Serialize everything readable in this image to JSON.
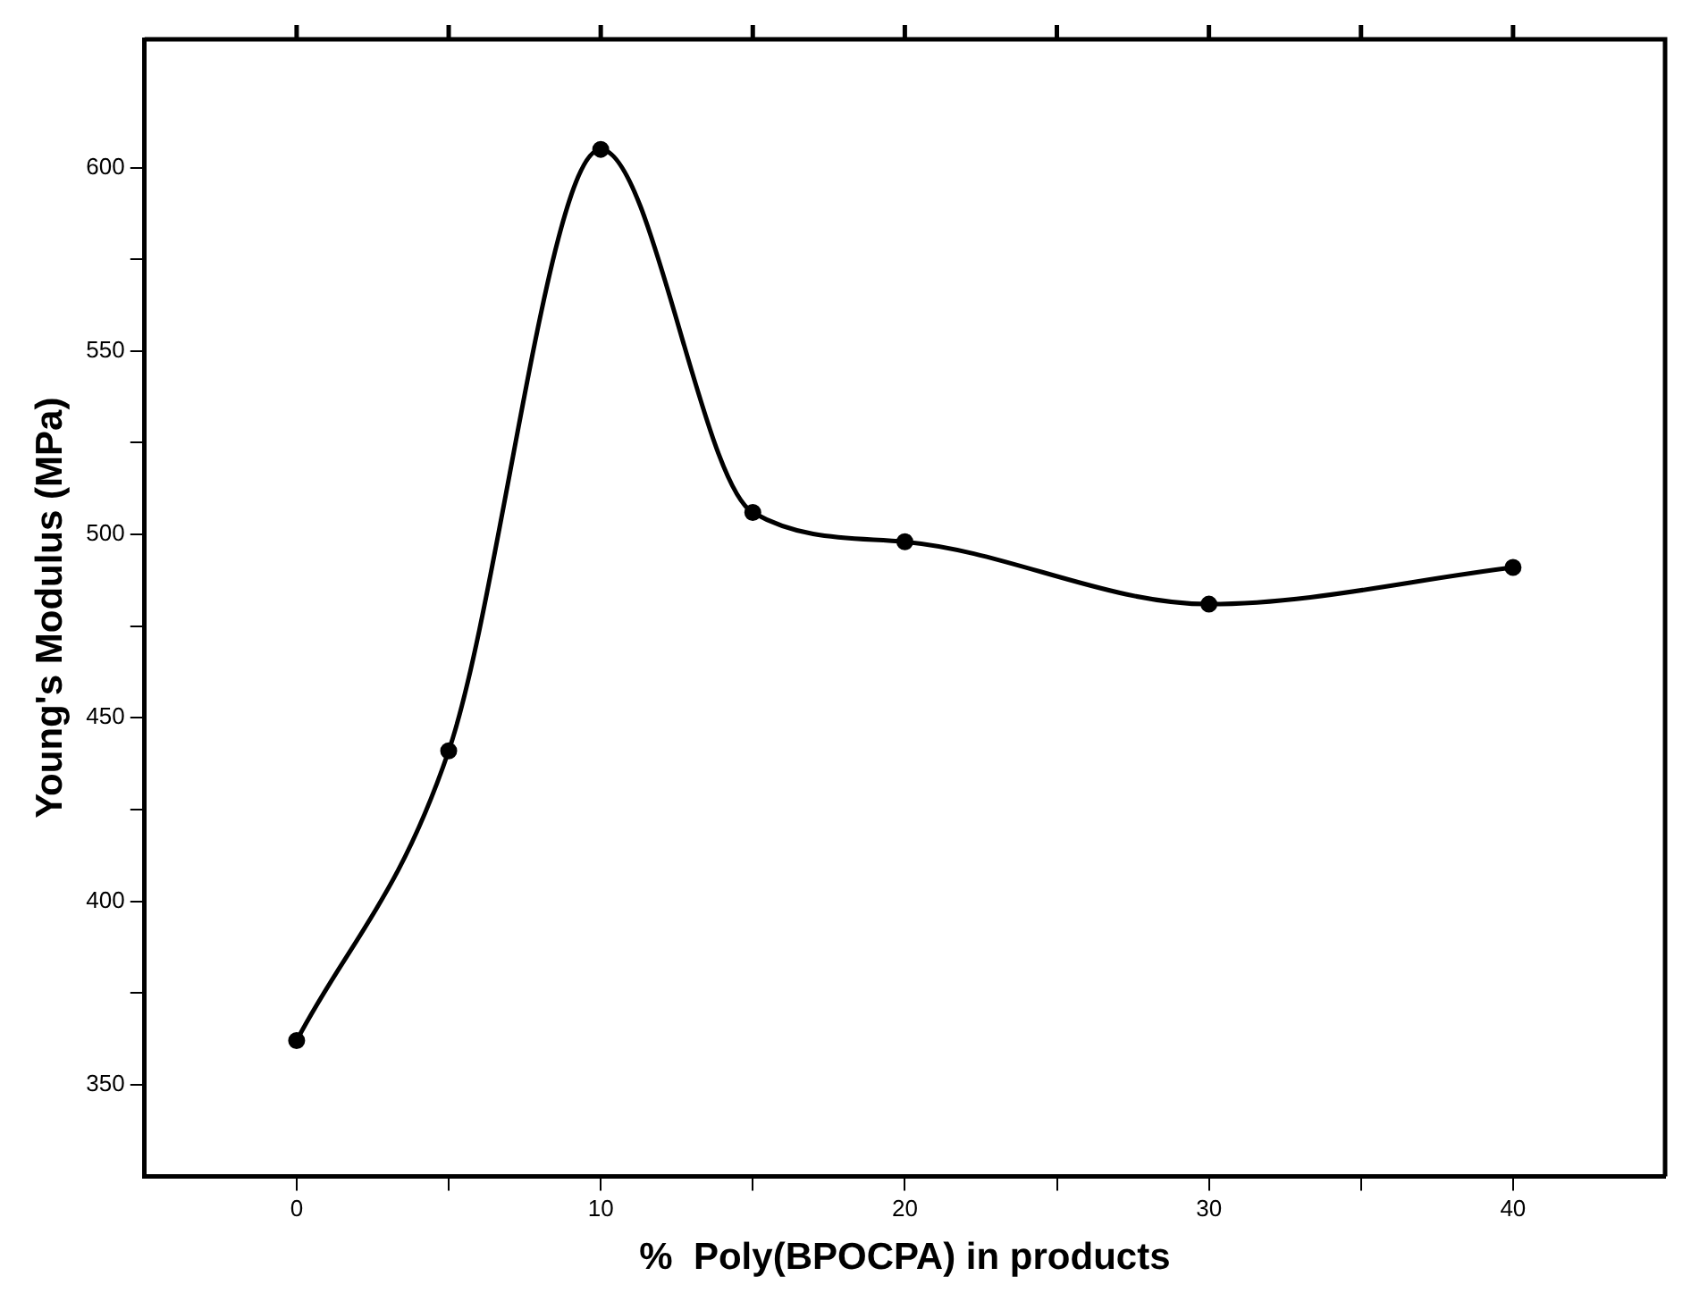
{
  "chart_data": {
    "type": "line",
    "xlabel": "%  Poly(BPOCPA) in products",
    "ylabel": "Young's Modulus (MPa)",
    "x": [
      0,
      5,
      10,
      15,
      20,
      30,
      40
    ],
    "series": [
      {
        "color": "#000000",
        "values": [
          362,
          441,
          605,
          506,
          498,
          481,
          491
        ]
      }
    ],
    "xlim": [
      -5,
      45
    ],
    "xticks": [
      0,
      {
        "value": 5,
        "label": null
      },
      10,
      {
        "value": 15,
        "label": null
      },
      20,
      {
        "value": 25,
        "label": null
      },
      30,
      {
        "value": 35,
        "label": null
      },
      40
    ],
    "ylim": [
      325,
      635
    ],
    "yticks": [
      350,
      {
        "value": 375,
        "label": null
      },
      400,
      {
        "value": 425,
        "label": null
      },
      450,
      {
        "value": 475,
        "label": null
      },
      500,
      {
        "value": 525,
        "label": null
      },
      550,
      {
        "value": 575,
        "label": null
      },
      600
    ],
    "grid": false,
    "legend": false,
    "marker": "circle",
    "line_style": "solid"
  }
}
